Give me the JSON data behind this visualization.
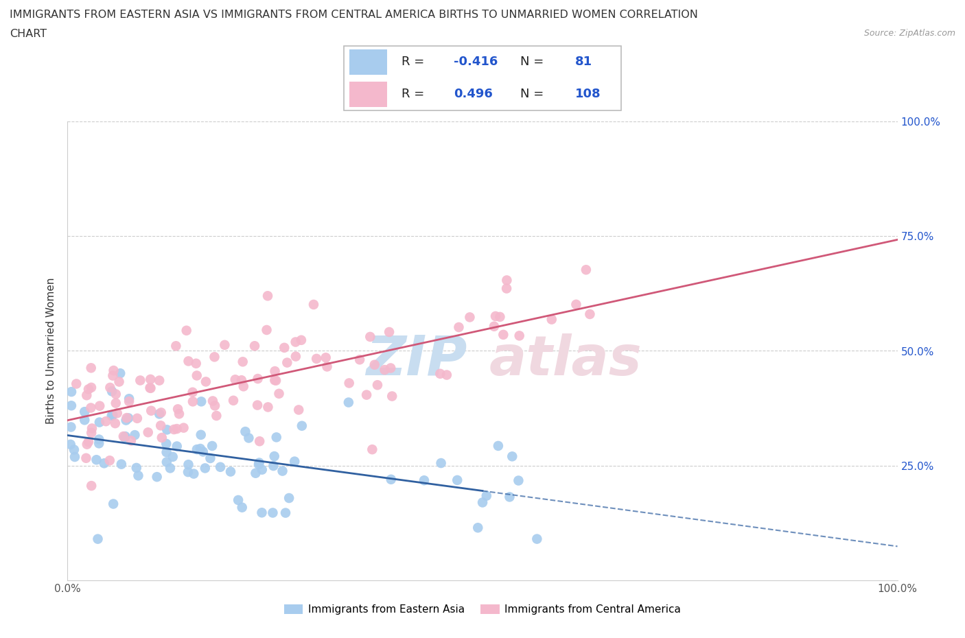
{
  "title_line1": "IMMIGRANTS FROM EASTERN ASIA VS IMMIGRANTS FROM CENTRAL AMERICA BIRTHS TO UNMARRIED WOMEN CORRELATION",
  "title_line2": "CHART",
  "source_text": "Source: ZipAtlas.com",
  "ylabel": "Births to Unmarried Women",
  "legend_label1": "Immigrants from Eastern Asia",
  "legend_label2": "Immigrants from Central America",
  "R1": -0.416,
  "N1": 81,
  "R2": 0.496,
  "N2": 108,
  "color_blue": "#a8ccee",
  "color_pink": "#f4b8cc",
  "color_blue_line": "#3060a0",
  "color_pink_line": "#d05878",
  "color_blue_text": "#2255cc",
  "xlim": [
    0.0,
    1.0
  ],
  "ylim": [
    0.0,
    1.0
  ],
  "watermark_zip_color": "#c8ddf0",
  "watermark_atlas_color": "#f0d8e0",
  "title_fontsize": 11.5,
  "tick_fontsize": 11,
  "ylabel_fontsize": 11,
  "legend_fontsize": 11
}
